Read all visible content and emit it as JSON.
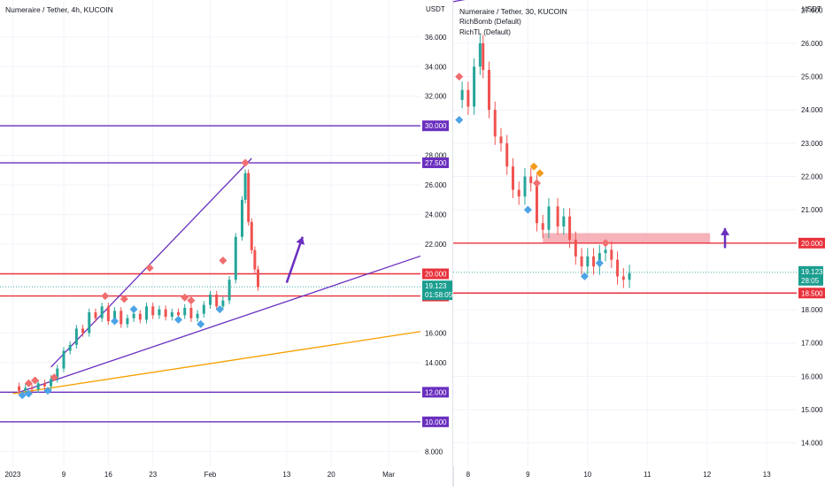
{
  "chart_data": [
    {
      "type": "candlestick",
      "title": "Numeraire / Tether, 4h, KUCOIN",
      "unit_label": "USDT",
      "y_ticks": [
        36.0,
        34.0,
        32.0,
        28.0,
        26.0,
        24.0,
        22.0,
        16.0,
        14.0,
        8.0
      ],
      "y_tick_labels": [
        "36.000",
        "34.000",
        "32.000",
        "28.000",
        "26.000",
        "24.000",
        "22.000",
        "16.000",
        "14.000",
        "8.000"
      ],
      "ylim": [
        7.0,
        38.5
      ],
      "x_ticks": [
        {
          "label": "2023",
          "day": 0
        },
        {
          "label": "9",
          "day": 8
        },
        {
          "label": "16",
          "day": 15
        },
        {
          "label": "23",
          "day": 22
        },
        {
          "label": "Feb",
          "day": 31
        },
        {
          "label": "13",
          "day": 43
        },
        {
          "label": "20",
          "day": 50
        },
        {
          "label": "Mar",
          "day": 59
        }
      ],
      "xlim": [
        -2,
        64
      ],
      "price_lines": [
        {
          "value": 30.0,
          "label": "30.000",
          "color": "#6a2fbf"
        },
        {
          "value": 27.5,
          "label": "27.500",
          "color": "#6a2fbf"
        },
        {
          "value": 20.0,
          "label": "20.000",
          "color": "#e8323c"
        },
        {
          "value": 18.5,
          "label": "18.500",
          "color": "#e8323c"
        },
        {
          "value": 12.0,
          "label": "12.000",
          "color": "#6a2fbf"
        },
        {
          "value": 10.0,
          "label": "10.000",
          "color": "#6a2fbf"
        }
      ],
      "current_price": {
        "value": 19.123,
        "label": "19.123",
        "countdown": "01:58:05"
      },
      "close_series": [
        {
          "day": 0,
          "value": 12.4
        },
        {
          "day": 1,
          "value": 12.1
        },
        {
          "day": 2,
          "value": 12.3
        },
        {
          "day": 3,
          "value": 12.2
        },
        {
          "day": 4,
          "value": 12.6
        },
        {
          "day": 5,
          "value": 12.4
        },
        {
          "day": 6,
          "value": 12.9
        },
        {
          "day": 7,
          "value": 13.6
        },
        {
          "day": 8,
          "value": 14.8
        },
        {
          "day": 9,
          "value": 15.2
        },
        {
          "day": 10,
          "value": 16.3
        },
        {
          "day": 11,
          "value": 16.0
        },
        {
          "day": 12,
          "value": 17.4
        },
        {
          "day": 13,
          "value": 17.0
        },
        {
          "day": 14,
          "value": 17.8
        },
        {
          "day": 15,
          "value": 16.8
        },
        {
          "day": 16,
          "value": 17.5
        },
        {
          "day": 17,
          "value": 16.6
        },
        {
          "day": 18,
          "value": 17.0
        },
        {
          "day": 19,
          "value": 17.3
        },
        {
          "day": 20,
          "value": 16.9
        },
        {
          "day": 21,
          "value": 17.8
        },
        {
          "day": 22,
          "value": 17.2
        },
        {
          "day": 23,
          "value": 17.6
        },
        {
          "day": 24,
          "value": 17.1
        },
        {
          "day": 25,
          "value": 17.4
        },
        {
          "day": 26,
          "value": 17.2
        },
        {
          "day": 27,
          "value": 17.7
        },
        {
          "day": 28,
          "value": 17.0
        },
        {
          "day": 29,
          "value": 17.3
        },
        {
          "day": 30,
          "value": 17.9
        },
        {
          "day": 31,
          "value": 18.6
        },
        {
          "day": 32,
          "value": 17.8
        },
        {
          "day": 33,
          "value": 18.2
        },
        {
          "day": 34,
          "value": 19.6
        },
        {
          "day": 35,
          "value": 22.5
        },
        {
          "day": 36,
          "value": 25.0
        },
        {
          "day": 36.5,
          "value": 26.8
        },
        {
          "day": 37,
          "value": 23.5
        },
        {
          "day": 37.5,
          "value": 21.6
        },
        {
          "day": 38,
          "value": 20.3
        },
        {
          "day": 38.5,
          "value": 19.1
        }
      ],
      "trend_lines": [
        {
          "from": [
            1,
            12.0
          ],
          "to": [
            64,
            21.2
          ],
          "color": "#6a2fbf"
        },
        {
          "from": [
            6,
            13.7
          ],
          "to": [
            37.5,
            27.8
          ],
          "color": "#6a2fbf"
        },
        {
          "from": [
            0,
            11.9
          ],
          "to": [
            64,
            16.1
          ],
          "color": "#f5a000"
        }
      ],
      "arrows": [
        {
          "from": [
            43,
            19.4
          ],
          "to": [
            45.5,
            22.5
          ],
          "color": "#6a2fbf"
        }
      ],
      "signals_sell": [
        {
          "day": 2.5,
          "value": 12.6
        },
        {
          "day": 3.5,
          "value": 12.8
        },
        {
          "day": 6.5,
          "value": 13.0
        },
        {
          "day": 14.5,
          "value": 18.5
        },
        {
          "day": 17.5,
          "value": 18.3
        },
        {
          "day": 21.5,
          "value": 20.4
        },
        {
          "day": 27,
          "value": 18.4
        },
        {
          "day": 28,
          "value": 18.2
        },
        {
          "day": 33,
          "value": 20.9
        },
        {
          "day": 36.5,
          "value": 27.5
        }
      ],
      "signals_buy": [
        {
          "day": 1.5,
          "value": 11.8
        },
        {
          "day": 2.5,
          "value": 11.9
        },
        {
          "day": 5.5,
          "value": 12.1
        },
        {
          "day": 16,
          "value": 16.8
        },
        {
          "day": 19,
          "value": 17.6
        },
        {
          "day": 26,
          "value": 16.9
        },
        {
          "day": 29.5,
          "value": 16.6
        },
        {
          "day": 32.5,
          "value": 17.6
        }
      ]
    },
    {
      "type": "candlestick",
      "title": "Numeraire / Tether, 30, KUCOIN",
      "indicators": [
        "RichBomb (Default)",
        "RichTL (Default)"
      ],
      "unit_label": "USDT",
      "y_ticks": [
        27.0,
        26.0,
        25.0,
        24.0,
        23.0,
        22.0,
        21.0,
        18.0,
        17.0,
        16.0,
        15.0,
        14.0
      ],
      "y_tick_labels": [
        "27.000",
        "26.000",
        "25.000",
        "24.000",
        "23.000",
        "22.000",
        "21.000",
        "18.000",
        "17.000",
        "16.000",
        "15.000",
        "14.000"
      ],
      "ylim": [
        13.3,
        27.3
      ],
      "x_ticks": [
        {
          "label": "8",
          "day": 8
        },
        {
          "label": "9",
          "day": 9
        },
        {
          "label": "10",
          "day": 10
        },
        {
          "label": "11",
          "day": 11
        },
        {
          "label": "12",
          "day": 12
        },
        {
          "label": "13",
          "day": 13
        }
      ],
      "xlim": [
        7.75,
        13.5
      ],
      "price_lines": [
        {
          "value": 20.0,
          "label": "20.000",
          "color": "#e8323c"
        },
        {
          "value": 18.5,
          "label": "18.500",
          "color": "#e8323c"
        }
      ],
      "current_price": {
        "value": 19.123,
        "label": "19.123",
        "countdown": "28:05"
      },
      "close_series": [
        {
          "day": 7.8,
          "value": 24.3
        },
        {
          "day": 7.9,
          "value": 24.6
        },
        {
          "day": 8.0,
          "value": 24.1
        },
        {
          "day": 8.1,
          "value": 25.3
        },
        {
          "day": 8.2,
          "value": 26.0
        },
        {
          "day": 8.25,
          "value": 25.2
        },
        {
          "day": 8.35,
          "value": 24.0
        },
        {
          "day": 8.45,
          "value": 23.2
        },
        {
          "day": 8.55,
          "value": 23.0
        },
        {
          "day": 8.65,
          "value": 22.3
        },
        {
          "day": 8.75,
          "value": 21.6
        },
        {
          "day": 8.85,
          "value": 21.4
        },
        {
          "day": 8.95,
          "value": 22.0
        },
        {
          "day": 9.05,
          "value": 21.8
        },
        {
          "day": 9.15,
          "value": 20.6
        },
        {
          "day": 9.25,
          "value": 20.4
        },
        {
          "day": 9.35,
          "value": 21.1
        },
        {
          "day": 9.5,
          "value": 20.5
        },
        {
          "day": 9.6,
          "value": 20.8
        },
        {
          "day": 9.7,
          "value": 20.1
        },
        {
          "day": 9.8,
          "value": 19.6
        },
        {
          "day": 9.9,
          "value": 19.3
        },
        {
          "day": 10.0,
          "value": 19.6
        },
        {
          "day": 10.1,
          "value": 19.3
        },
        {
          "day": 10.2,
          "value": 19.7
        },
        {
          "day": 10.3,
          "value": 19.8
        },
        {
          "day": 10.4,
          "value": 19.5
        },
        {
          "day": 10.5,
          "value": 19.0
        },
        {
          "day": 10.6,
          "value": 18.9
        },
        {
          "day": 10.7,
          "value": 19.1
        }
      ],
      "trend_lines": [
        {
          "from": [
            7.75,
            27.25
          ],
          "to": [
            8.2,
            27.4
          ],
          "color": "#6a2fbf"
        }
      ],
      "zone": {
        "from_day": 9.25,
        "to_day": 12.05,
        "low": 20.0,
        "high": 20.3,
        "color": "#f4a6ae"
      },
      "arrows": [
        {
          "from": [
            12.3,
            19.85
          ],
          "to": [
            12.3,
            20.45
          ],
          "color": "#6a2fbf"
        }
      ],
      "signals_sell": [
        {
          "day": 7.85,
          "value": 25.0
        },
        {
          "day": 9.15,
          "value": 21.8
        },
        {
          "day": 10.3,
          "value": 20.0
        }
      ],
      "signals_buy": [
        {
          "day": 7.85,
          "value": 23.7
        },
        {
          "day": 9.0,
          "value": 21.0
        },
        {
          "day": 9.95,
          "value": 19.0
        },
        {
          "day": 10.2,
          "value": 19.4
        }
      ],
      "signals_neutral": [
        {
          "day": 9.1,
          "value": 22.3
        },
        {
          "day": 9.2,
          "value": 22.1
        }
      ]
    }
  ]
}
